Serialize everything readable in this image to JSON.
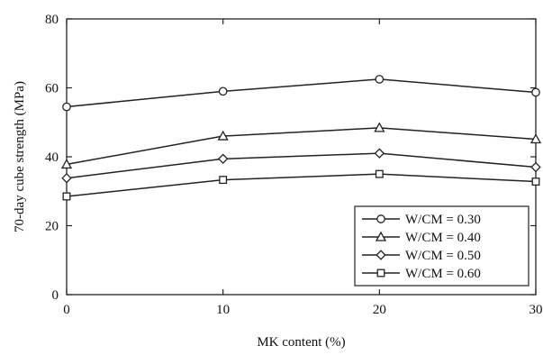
{
  "chart_data": {
    "type": "line",
    "title": "",
    "xlabel": "MK content (%)",
    "ylabel": "70-day cube strength (MPa)",
    "xlim": [
      0,
      30
    ],
    "ylim": [
      0,
      80
    ],
    "x_ticks": [
      0,
      10,
      20,
      30
    ],
    "y_ticks": [
      0,
      20,
      40,
      60,
      80
    ],
    "grid": false,
    "legend_position": "bottom-right",
    "x": [
      0,
      10,
      20,
      30
    ],
    "series": [
      {
        "name": "W/CM = 0.30",
        "marker": "circle",
        "values": [
          54.5,
          59.0,
          62.5,
          58.7
        ]
      },
      {
        "name": "W/CM = 0.40",
        "marker": "triangle",
        "values": [
          37.8,
          46.0,
          48.4,
          45.1
        ]
      },
      {
        "name": "W/CM = 0.50",
        "marker": "diamond",
        "values": [
          33.8,
          39.4,
          41.0,
          37.0
        ]
      },
      {
        "name": "W/CM = 0.60",
        "marker": "square",
        "values": [
          28.5,
          33.3,
          35.0,
          32.8
        ]
      }
    ]
  }
}
